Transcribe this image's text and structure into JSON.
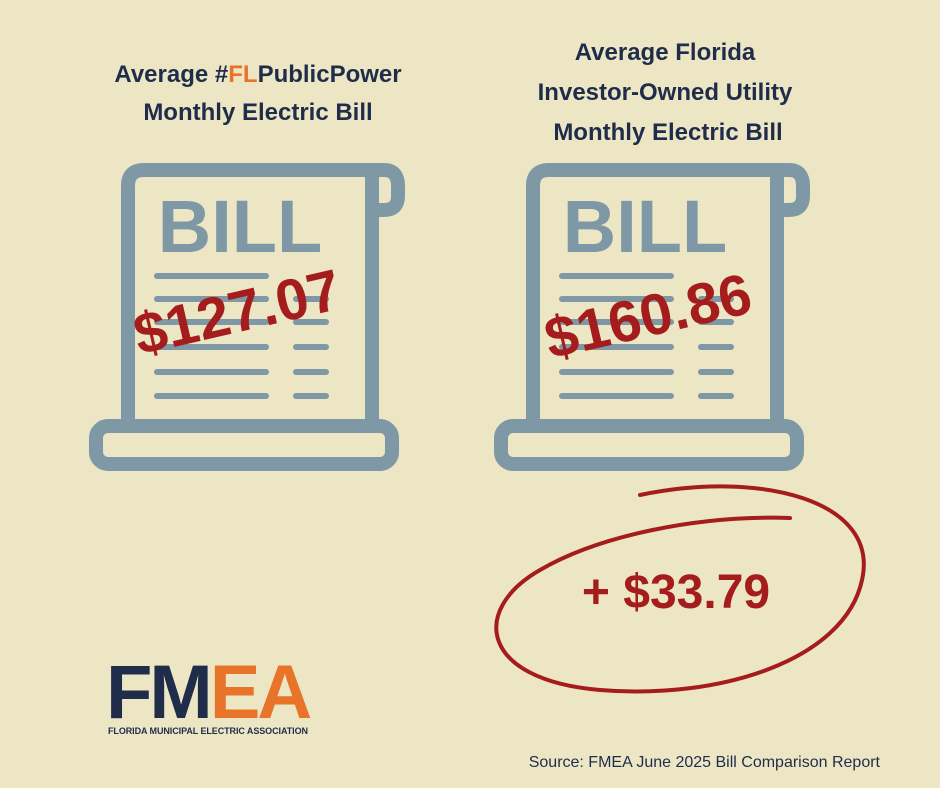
{
  "left": {
    "title_line1": [
      "Average #",
      "FL",
      "PublicPower"
    ],
    "title_line2": "Monthly Electric Bill",
    "bill_label": "BILL",
    "amount": "$127.07"
  },
  "right": {
    "title_lines": [
      "Average Florida",
      "Investor-Owned Utility",
      "Monthly Electric Bill"
    ],
    "bill_label": "BILL",
    "amount": "$160.86"
  },
  "difference": "+ $33.79",
  "logo": {
    "letters_dark": "FM",
    "letters_accent": "EA",
    "subtitle": "FLORIDA MUNICIPAL ELECTRIC ASSOCIATION"
  },
  "source": "Source: FMEA June 2025 Bill Comparison Report"
}
